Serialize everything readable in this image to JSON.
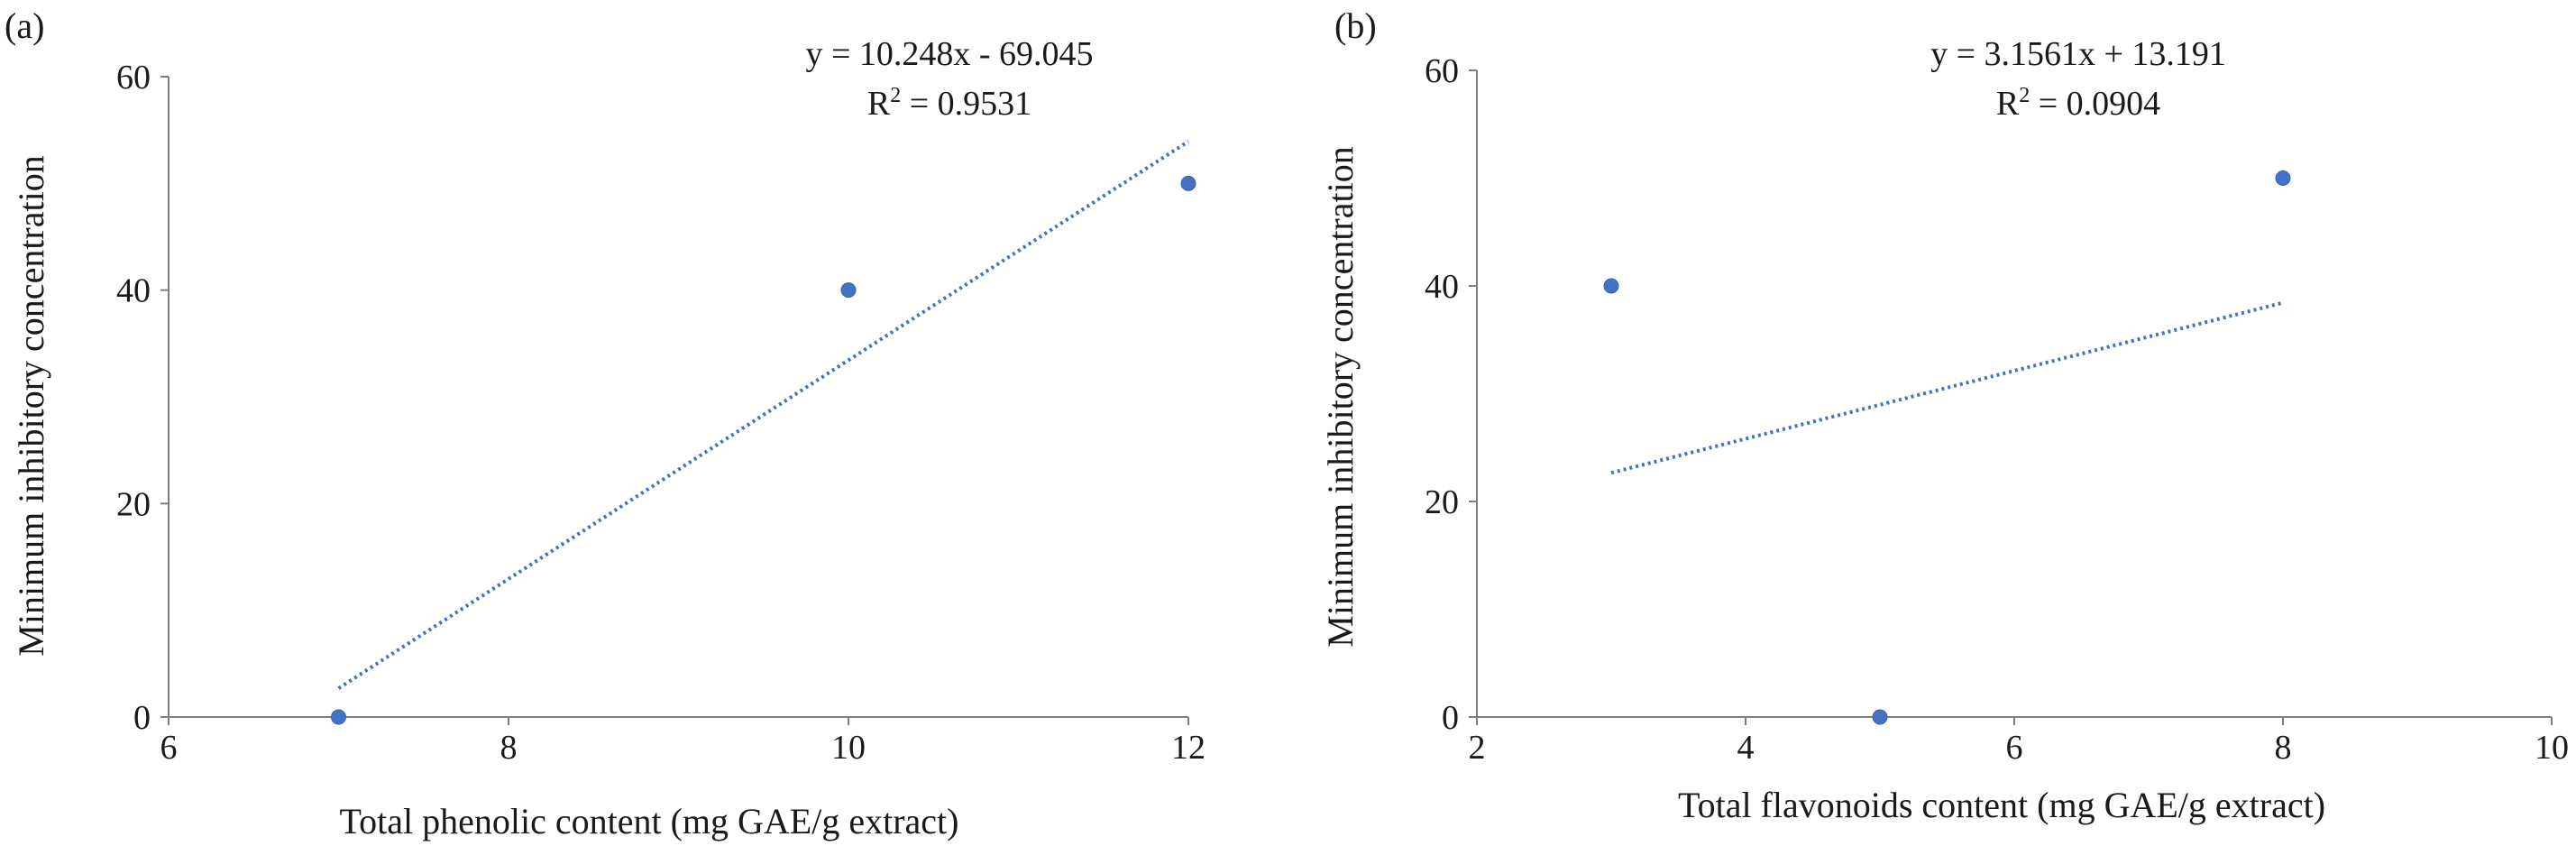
{
  "chart_data": [
    {
      "type": "scatter",
      "panel_label": "(a)",
      "xlabel": "Total phenolic content (mg GAE/g extract)",
      "ylabel": "Minimum inhibitory concentration",
      "xlim": [
        6,
        12
      ],
      "ylim": [
        0,
        60
      ],
      "xticks": [
        6,
        8,
        10,
        12
      ],
      "yticks": [
        0,
        20,
        40,
        60
      ],
      "grid": false,
      "points": [
        {
          "x": 7,
          "y": 0
        },
        {
          "x": 10,
          "y": 40
        },
        {
          "x": 12,
          "y": 50
        }
      ],
      "trendline": {
        "slope": 10.248,
        "intercept": -69.045,
        "x_range": [
          7,
          12
        ]
      },
      "equation": "y = 10.248x - 69.045",
      "r2_prefix": "R",
      "r2_exp": "2",
      "r2_value": " = 0.9531",
      "marker_color": "#4472C4",
      "trend_color": "#4472C4"
    },
    {
      "type": "scatter",
      "panel_label": "(b)",
      "xlabel": "Total flavonoids content (mg GAE/g extract)",
      "ylabel": "Minimum inhibitory concentration",
      "xlim": [
        2,
        10
      ],
      "ylim": [
        0,
        60
      ],
      "xticks": [
        2,
        4,
        6,
        8,
        10
      ],
      "yticks": [
        0,
        20,
        40,
        60
      ],
      "grid": false,
      "points": [
        {
          "x": 3,
          "y": 40
        },
        {
          "x": 5,
          "y": 0
        },
        {
          "x": 8,
          "y": 50
        }
      ],
      "trendline": {
        "slope": 3.1561,
        "intercept": 13.191,
        "x_range": [
          3,
          8
        ]
      },
      "equation": "y = 3.1561x + 13.191",
      "r2_prefix": "R",
      "r2_exp": "2",
      "r2_value": " = 0.0904",
      "marker_color": "#4472C4",
      "trend_color": "#4472C4"
    }
  ]
}
